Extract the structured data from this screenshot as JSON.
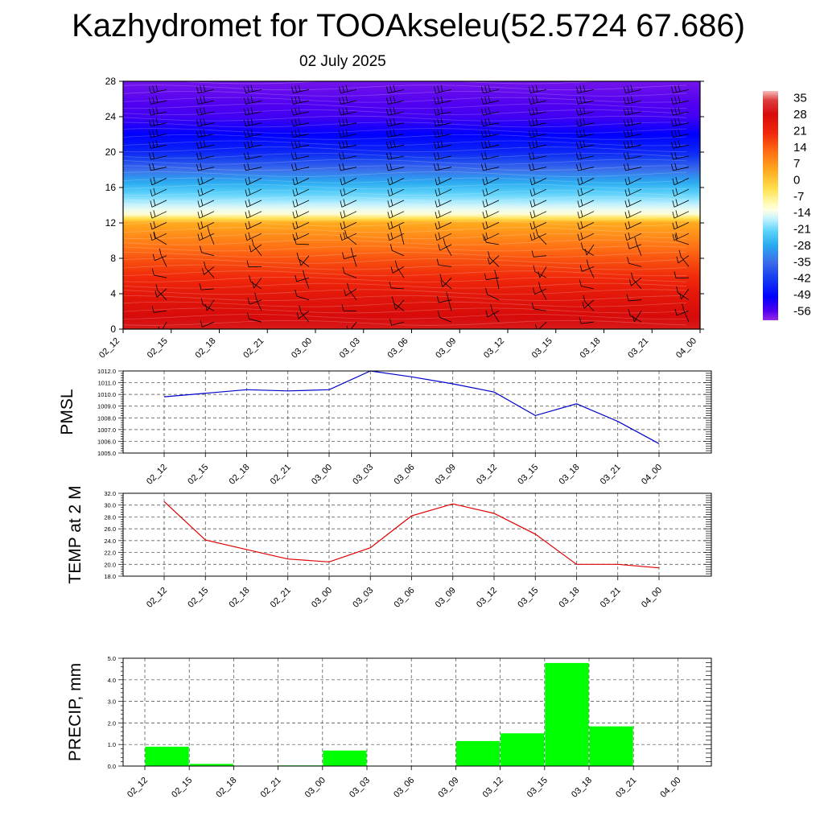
{
  "title": "Kazhydromet for TOOAkseleu(52.5724 67.686)",
  "subtitle": "02 July 2025",
  "time_labels": [
    "02_12",
    "02_15",
    "02_18",
    "02_21",
    "03_00",
    "03_03",
    "03_06",
    "03_09",
    "03_12",
    "03_15",
    "03_18",
    "03_21",
    "04_00"
  ],
  "chart_data": [
    {
      "type": "heatmap",
      "panel": "cross-section",
      "x": [
        "02_12",
        "02_15",
        "02_18",
        "02_21",
        "03_00",
        "03_03",
        "03_06",
        "03_09",
        "03_12",
        "03_15",
        "03_18",
        "03_21",
        "04_00"
      ],
      "y_ticks": [
        0,
        4,
        8,
        12,
        16,
        20,
        24,
        28
      ],
      "ylim": [
        0,
        28
      ],
      "colorbar_ticks": [
        35,
        28,
        21,
        14,
        7,
        0,
        -7,
        -14,
        -21,
        -28,
        -35,
        -42,
        -49,
        -56
      ],
      "colorbar_range": [
        -60,
        38
      ],
      "temperature_profile": {
        "heights": [
          0,
          4,
          8,
          12,
          13,
          16,
          20,
          24,
          28
        ],
        "values": [
          30,
          24,
          15,
          4,
          -12,
          -25,
          -45,
          -55,
          -58
        ]
      },
      "wind_barbs": true
    },
    {
      "type": "line",
      "ylabel": "PMSL",
      "ylim": [
        1005.0,
        1012.0
      ],
      "y_ticks": [
        "1005.0",
        "1006.0",
        "1007.0",
        "1008.0",
        "1009.0",
        "1010.0",
        "1011.0",
        "1012.0"
      ],
      "x": [
        "02_12",
        "02_15",
        "02_18",
        "02_21",
        "03_00",
        "03_03",
        "03_06",
        "03_09",
        "03_12",
        "03_15",
        "03_18",
        "03_21",
        "04_00"
      ],
      "series": [
        {
          "values": [
            1009.8,
            1010.1,
            1010.4,
            1010.3,
            1010.4,
            1012.0,
            1011.5,
            1010.9,
            1010.2,
            1008.2,
            1009.2,
            1007.7,
            1005.8
          ],
          "color": "#0000cc"
        }
      ],
      "grid": true
    },
    {
      "type": "line",
      "ylabel": "TEMP at 2 M",
      "ylim": [
        18.0,
        32.0
      ],
      "y_ticks": [
        "18.0",
        "20.0",
        "22.0",
        "24.0",
        "26.0",
        "28.0",
        "30.0",
        "32.0"
      ],
      "x": [
        "02_12",
        "02_15",
        "02_18",
        "02_21",
        "03_00",
        "03_03",
        "03_06",
        "03_09",
        "03_12",
        "03_15",
        "03_18",
        "03_21",
        "04_00"
      ],
      "series": [
        {
          "values": [
            30.6,
            24.1,
            22.5,
            20.9,
            20.4,
            22.8,
            28.2,
            30.2,
            28.6,
            25.1,
            20.0,
            20.0,
            19.4
          ],
          "color": "#e00000"
        }
      ],
      "grid": true
    },
    {
      "type": "bar",
      "ylabel": "PRECIP, mm",
      "ylim": [
        0.0,
        5.0
      ],
      "y_ticks": [
        "0.0",
        "1.0",
        "2.0",
        "3.0",
        "4.0",
        "5.0"
      ],
      "categories": [
        "02_15",
        "02_18",
        "02_21",
        "03_00",
        "03_03",
        "03_06",
        "03_09",
        "03_12",
        "03_15",
        "03_18",
        "03_21",
        "04_00"
      ],
      "values": [
        0.9,
        0.1,
        0.0,
        0.03,
        0.72,
        0.02,
        0.0,
        1.16,
        1.52,
        4.78,
        1.84,
        0.02
      ],
      "color": "#00ff00",
      "grid": true
    }
  ]
}
